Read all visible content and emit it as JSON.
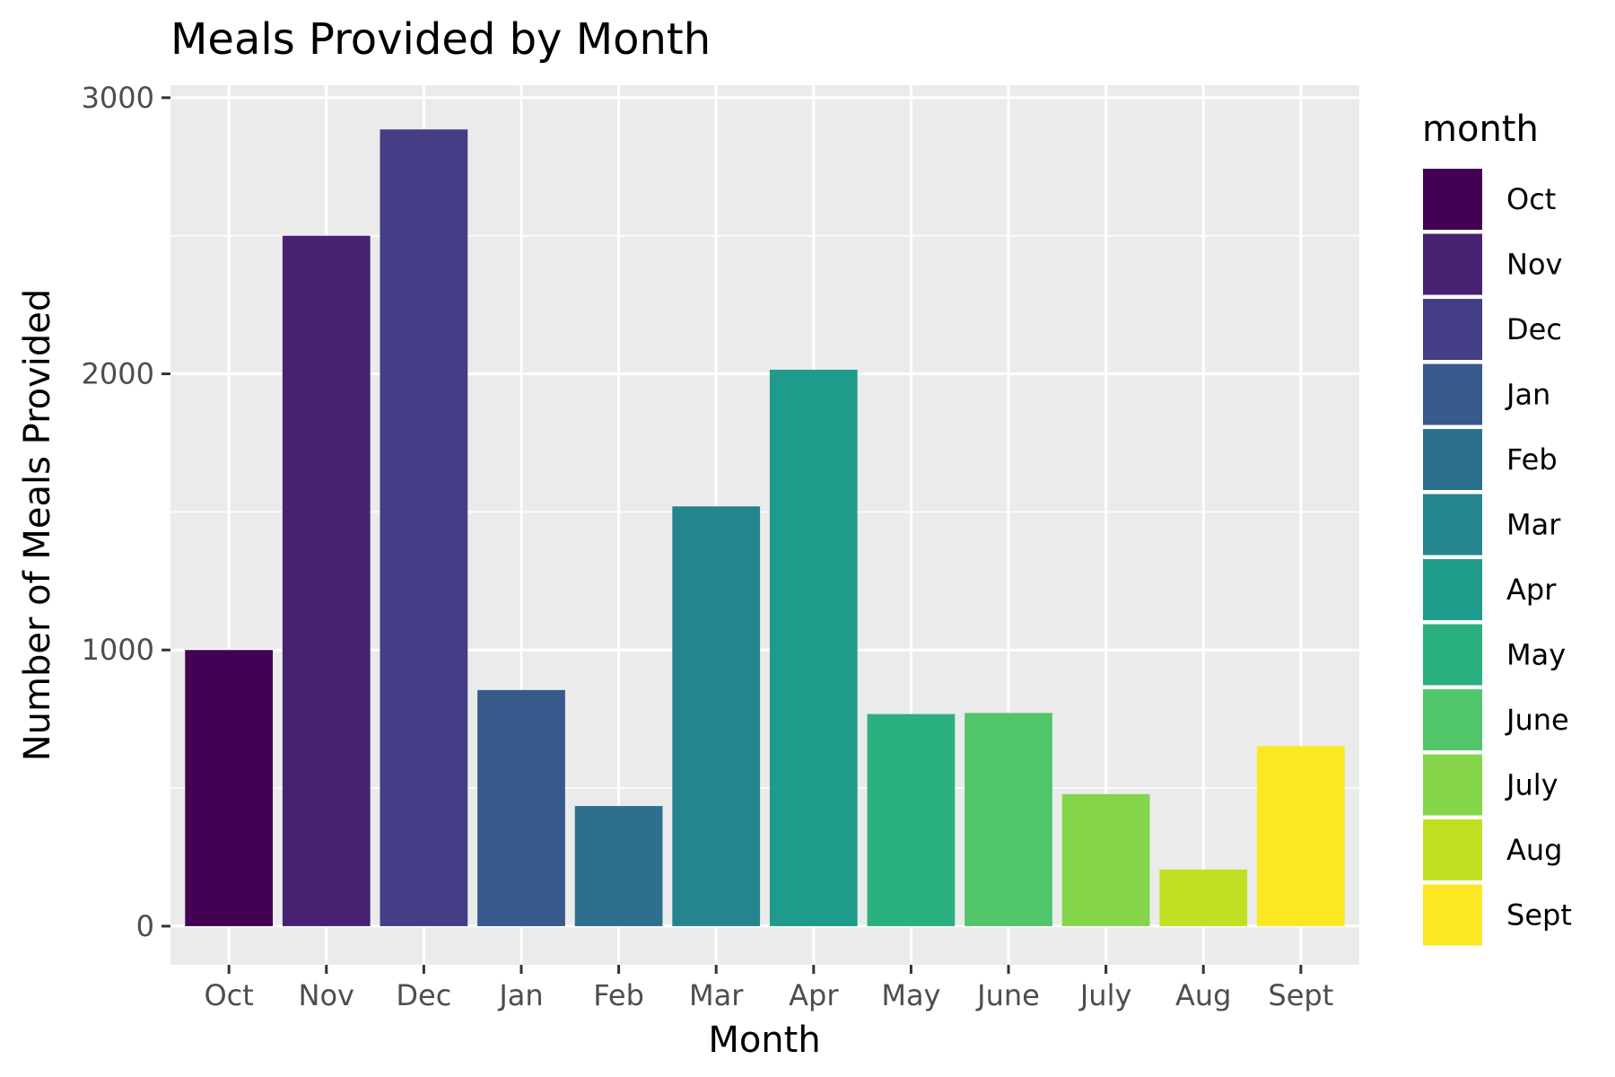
{
  "chart_data": {
    "type": "bar",
    "title": "Meals Provided by Month",
    "xlabel": "Month",
    "ylabel": "Number of Meals Provided",
    "categories": [
      "Oct",
      "Nov",
      "Dec",
      "Jan",
      "Feb",
      "Mar",
      "Apr",
      "May",
      "June",
      "July",
      "Aug",
      "Sept"
    ],
    "values": [
      1000,
      2500,
      2885,
      855,
      435,
      1520,
      2015,
      768,
      772,
      478,
      205,
      652
    ],
    "ylim": [
      -140,
      3045
    ],
    "yticks": [
      0,
      1000,
      2000,
      3000
    ],
    "ytick_labels": [
      "0",
      "1000",
      "2000",
      "3000"
    ],
    "grid": true,
    "legend": {
      "title": "month",
      "position": "right",
      "entries": [
        "Oct",
        "Nov",
        "Dec",
        "Jan",
        "Feb",
        "Mar",
        "Apr",
        "May",
        "June",
        "July",
        "Aug",
        "Sept"
      ]
    },
    "colors": [
      "#440154",
      "#482173",
      "#433E85",
      "#38598C",
      "#2D708E",
      "#25858E",
      "#1E9B8A",
      "#2BB07F",
      "#51C56A",
      "#85D54A",
      "#C2DF23",
      "#FDE725"
    ]
  }
}
